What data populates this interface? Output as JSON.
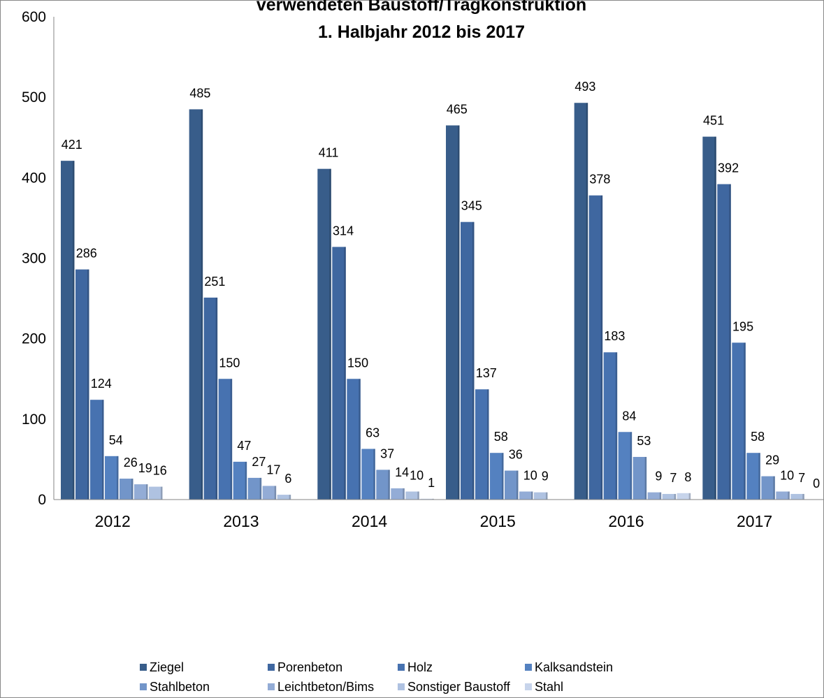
{
  "chart_data": {
    "type": "bar",
    "title_lines": [
      "verwendeten Baustoff/Tragkonstruktion",
      "1. Halbjahr 2012 bis 2017"
    ],
    "categories": [
      "2012",
      "2013",
      "2014",
      "2015",
      "2016",
      "2017"
    ],
    "ylim": [
      0,
      600
    ],
    "yticks": [
      "0",
      "100",
      "200",
      "300",
      "400",
      "500",
      "600"
    ],
    "grid": false,
    "legend_position": "bottom",
    "series": [
      {
        "name": "Ziegel",
        "color": "#385d8a",
        "values": [
          421,
          485,
          411,
          465,
          493,
          451
        ]
      },
      {
        "name": "Porenbeton",
        "color": "#3f67a0",
        "values": [
          286,
          251,
          314,
          345,
          378,
          392
        ]
      },
      {
        "name": "Holz",
        "color": "#4772b0",
        "values": [
          124,
          150,
          150,
          137,
          183,
          195
        ]
      },
      {
        "name": "Kalksandstein",
        "color": "#5481c0",
        "values": [
          54,
          47,
          63,
          58,
          84,
          58
        ]
      },
      {
        "name": "Stahlbeton",
        "color": "#7295c9",
        "values": [
          26,
          27,
          37,
          36,
          53,
          29
        ]
      },
      {
        "name": "Leichtbeton/Bims",
        "color": "#93acd6",
        "values": [
          19,
          17,
          14,
          10,
          9,
          10
        ]
      },
      {
        "name": "Sonstiger Baustoff",
        "color": "#afc2e1",
        "values": [
          16,
          6,
          10,
          9,
          7,
          7
        ]
      },
      {
        "name": "Stahl",
        "color": "#c7d4eb",
        "values": [
          null,
          null,
          1,
          null,
          8,
          0
        ]
      }
    ]
  }
}
